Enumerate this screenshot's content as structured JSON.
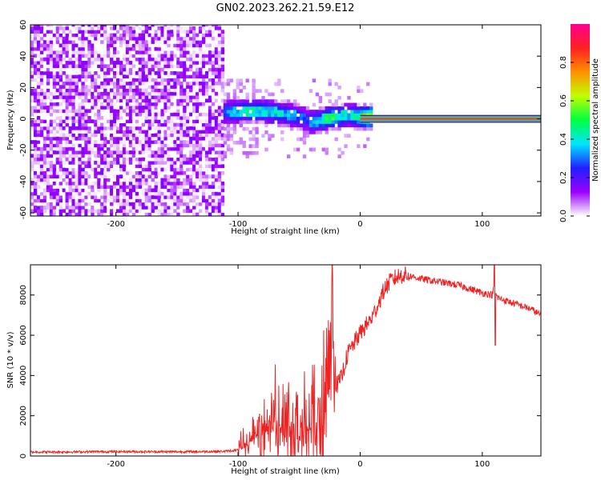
{
  "title": "GN02.2023.262.21.59.E12",
  "chart_data": [
    {
      "type": "heatmap",
      "xlabel": "Height of straight line (km)",
      "ylabel": "Frequency (Hz)",
      "xlim": [
        -270,
        148
      ],
      "ylim": [
        -62,
        60
      ],
      "x_ticks": [
        -200,
        -100,
        0,
        100
      ],
      "y_ticks": [
        -60,
        -40,
        -20,
        0,
        20,
        40,
        60
      ],
      "grid": false,
      "colorbar": {
        "label": "Normalized spectral amplitude",
        "range": [
          0,
          1
        ],
        "ticks": [
          0.0,
          0.2,
          0.4,
          0.6,
          0.8
        ],
        "colormap": [
          "#ffffff",
          "#9a00ff",
          "#2020ff",
          "#00e5ff",
          "#00ff40",
          "#c0ff00",
          "#ff9000",
          "#ff2020",
          "#ff0090"
        ]
      },
      "features": {
        "noise_region_x": [
          -270,
          -112
        ],
        "noise_amplitude_range": [
          0.0,
          0.1
        ],
        "wide_signal_x": [
          -112,
          10
        ],
        "narrow_carrier_x": [
          0,
          148
        ],
        "carrier_frequency": 0,
        "carrier_amplitude": 0.9
      },
      "frequency_track": {
        "x": [
          -112,
          -100,
          -90,
          -80,
          -70,
          -60,
          -50,
          -45,
          -40,
          -35,
          -30,
          -25,
          -20,
          -15,
          -10,
          -5,
          0,
          10,
          50,
          100,
          148
        ],
        "y": [
          3,
          4,
          4,
          4,
          3,
          2,
          0,
          -2,
          -3,
          -2,
          -1,
          0,
          0,
          1,
          1,
          1,
          0,
          0,
          0,
          0,
          0
        ],
        "amplitude": [
          0.35,
          0.45,
          0.5,
          0.45,
          0.45,
          0.4,
          0.35,
          0.3,
          0.4,
          0.45,
          0.55,
          0.6,
          0.55,
          0.45,
          0.45,
          0.45,
          0.7,
          0.9,
          0.9,
          0.9,
          0.9
        ]
      }
    },
    {
      "type": "line",
      "xlabel": "Height of straight line (km)",
      "ylabel": "SNR (10 * v/v)",
      "xlim": [
        -270,
        148
      ],
      "ylim": [
        0,
        9500
      ],
      "x_ticks": [
        -200,
        -100,
        0,
        100
      ],
      "y_ticks": [
        0,
        2000,
        4000,
        6000,
        8000
      ],
      "grid": false,
      "series": [
        {
          "color": "#ee2222",
          "x": [
            -270,
            -250,
            -200,
            -150,
            -110,
            -100,
            -95,
            -90,
            -85,
            -80,
            -75,
            -70,
            -65,
            -60,
            -55,
            -50,
            -45,
            -40,
            -35,
            -32,
            -30,
            -28,
            -26,
            -24,
            -22,
            -20,
            -18,
            -16,
            -14,
            -12,
            -10,
            -8,
            -5,
            -2,
            0,
            5,
            10,
            15,
            20,
            25,
            30,
            35,
            40,
            50,
            60,
            70,
            80,
            90,
            100,
            105,
            108,
            110,
            112,
            115,
            120,
            130,
            140,
            148
          ],
          "y": [
            200,
            200,
            220,
            210,
            230,
            300,
            400,
            700,
            900,
            1200,
            1400,
            1500,
            1600,
            1700,
            1500,
            1400,
            1300,
            1300,
            1200,
            1400,
            1800,
            3500,
            3000,
            2800,
            3300,
            3500,
            3600,
            3800,
            4200,
            4700,
            5100,
            5300,
            5600,
            5900,
            6100,
            6500,
            6900,
            7600,
            8300,
            8700,
            8900,
            9000,
            8950,
            8800,
            8700,
            8600,
            8500,
            8300,
            8100,
            8050,
            8000,
            8400,
            7900,
            7800,
            7700,
            7500,
            7300,
            7000
          ]
        }
      ],
      "noise_band_x": [
        -100,
        -20
      ]
    }
  ]
}
